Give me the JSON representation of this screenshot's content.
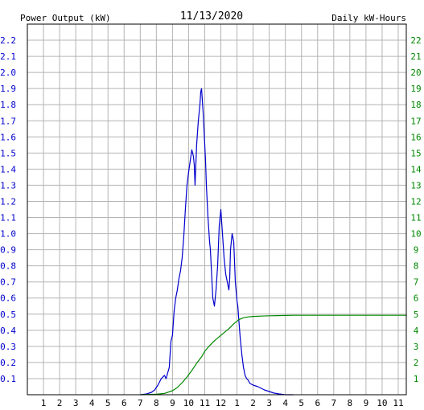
{
  "chart_data": {
    "type": "line",
    "title": "11/13/2020",
    "left_axis_label": "Power Output (kW)",
    "right_axis_label": "Daily kW-Hours",
    "x_tick_labels": [
      "1",
      "2",
      "3",
      "4",
      "5",
      "6",
      "7",
      "8",
      "9",
      "10",
      "11",
      "12",
      "1",
      "2",
      "3",
      "4",
      "5",
      "6",
      "7",
      "8",
      "9",
      "10",
      "11"
    ],
    "x_range_hours": [
      0,
      23.5
    ],
    "left_ylim": [
      0,
      2.3
    ],
    "left_tick_labels": [
      "0.1",
      "0.2",
      "0.3",
      "0.4",
      "0.5",
      "0.6",
      "0.7",
      "0.8",
      "0.9",
      "1.0",
      "1.1",
      "1.2",
      "1.3",
      "1.4",
      "1.5",
      "1.6",
      "1.7",
      "1.8",
      "1.9",
      "2.0",
      "2.1",
      "2.2"
    ],
    "right_ylim": [
      0,
      23
    ],
    "right_tick_labels": [
      "1",
      "2",
      "3",
      "4",
      "5",
      "6",
      "7",
      "8",
      "9",
      "10",
      "11",
      "12",
      "13",
      "14",
      "15",
      "16",
      "17",
      "18",
      "19",
      "20",
      "21",
      "22"
    ],
    "grid": true,
    "colors": {
      "left_axis": "#0000cc",
      "right_axis": "#008800",
      "power_line": "#0000cc",
      "energy_line": "#008800",
      "grid": "#b4b4b4"
    },
    "series": [
      {
        "axis": "left",
        "x": [
          7.0,
          7.4,
          7.7,
          7.9,
          8.1,
          8.3,
          8.5,
          8.6,
          8.8,
          8.9,
          9.0,
          9.1,
          9.2,
          9.3,
          9.4,
          9.5,
          9.6,
          9.7,
          9.8,
          9.9,
          10.0,
          10.1,
          10.2,
          10.3,
          10.35,
          10.4,
          10.5,
          10.6,
          10.7,
          10.75,
          10.8,
          10.9,
          11.0,
          11.05,
          11.1,
          11.2,
          11.3,
          11.35,
          11.4,
          11.5,
          11.6,
          11.7,
          11.8,
          11.9,
          12.0,
          12.1,
          12.2,
          12.3,
          12.4,
          12.5,
          12.55,
          12.6,
          12.7,
          12.8,
          12.9,
          13.0,
          13.05,
          13.1,
          13.2,
          13.3,
          13.4,
          13.5,
          13.6,
          13.7,
          13.8,
          14.0,
          14.3,
          14.7,
          15.0,
          15.3,
          15.6,
          16.0,
          16.5
        ],
        "y": [
          0.0,
          0.005,
          0.015,
          0.03,
          0.06,
          0.1,
          0.12,
          0.1,
          0.17,
          0.33,
          0.37,
          0.52,
          0.6,
          0.65,
          0.72,
          0.77,
          0.85,
          0.98,
          1.15,
          1.3,
          1.38,
          1.45,
          1.52,
          1.48,
          1.43,
          1.3,
          1.55,
          1.7,
          1.8,
          1.88,
          1.9,
          1.75,
          1.55,
          1.45,
          1.3,
          1.1,
          0.95,
          0.9,
          0.8,
          0.6,
          0.55,
          0.65,
          0.8,
          1.05,
          1.15,
          1.0,
          0.85,
          0.75,
          0.7,
          0.65,
          0.72,
          0.9,
          1.0,
          0.95,
          0.7,
          0.58,
          0.55,
          0.48,
          0.35,
          0.25,
          0.17,
          0.12,
          0.1,
          0.09,
          0.07,
          0.06,
          0.05,
          0.03,
          0.02,
          0.01,
          0.005,
          0.0,
          0.0
        ]
      },
      {
        "axis": "right",
        "x": [
          7.0,
          8.0,
          8.5,
          9.0,
          9.3,
          9.6,
          9.9,
          10.2,
          10.5,
          10.8,
          11.0,
          11.3,
          11.6,
          11.9,
          12.2,
          12.5,
          12.8,
          13.1,
          13.4,
          13.7,
          14.0,
          14.5,
          15.0,
          15.5,
          16.0,
          16.5,
          17.0,
          20.0,
          23.5
        ],
        "y": [
          0.0,
          0.03,
          0.08,
          0.25,
          0.45,
          0.75,
          1.1,
          1.5,
          1.95,
          2.35,
          2.7,
          3.05,
          3.35,
          3.6,
          3.85,
          4.1,
          4.4,
          4.65,
          4.78,
          4.83,
          4.86,
          4.88,
          4.9,
          4.91,
          4.92,
          4.93,
          4.93,
          4.93,
          4.93
        ]
      }
    ]
  }
}
